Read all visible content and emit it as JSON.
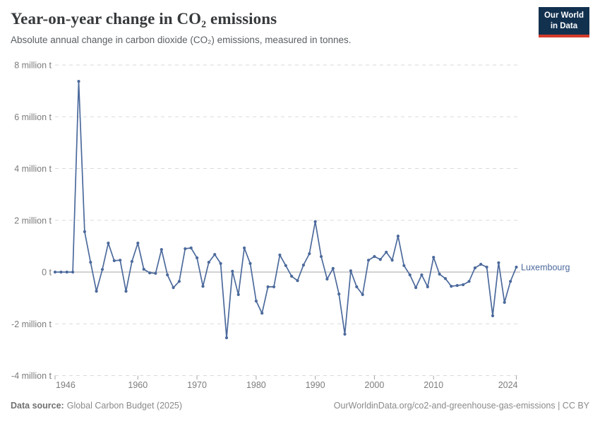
{
  "header": {
    "title": "Year-on-year change in CO₂ emissions",
    "subtitle": "Absolute annual change in carbon dioxide (CO₂) emissions, measured in tonnes.",
    "logo": {
      "line1": "Our World",
      "line2": "in Data",
      "bg_color": "#12314f",
      "accent_color": "#d43b2a"
    }
  },
  "chart_data": {
    "type": "line",
    "title": "Year-on-year change in CO₂ emissions",
    "subtitle": "Absolute annual change in carbon dioxide (CO₂) emissions, measured in tonnes.",
    "entity": "Luxembourg",
    "value_unit": "million tonnes",
    "line_color": "#4c6a9c",
    "grid": true,
    "legend_position": "end-of-line-label",
    "xlim": [
      1946,
      2024
    ],
    "ylim": [
      -4,
      8
    ],
    "x_ticks": [
      1946,
      1960,
      1970,
      1980,
      1990,
      2000,
      2010,
      2024
    ],
    "y_ticks": [
      {
        "value": 8,
        "label": "8 million t"
      },
      {
        "value": 6,
        "label": "6 million t"
      },
      {
        "value": 4,
        "label": "4 million t"
      },
      {
        "value": 2,
        "label": "2 million t"
      },
      {
        "value": 0,
        "label": "0 t"
      },
      {
        "value": -2,
        "label": "-2 million t"
      },
      {
        "value": -4,
        "label": "-4 million t"
      }
    ],
    "x": [
      1946,
      1947,
      1948,
      1949,
      1950,
      1951,
      1952,
      1953,
      1954,
      1955,
      1956,
      1957,
      1958,
      1959,
      1960,
      1961,
      1962,
      1963,
      1964,
      1965,
      1966,
      1967,
      1968,
      1969,
      1970,
      1971,
      1972,
      1973,
      1974,
      1975,
      1976,
      1977,
      1978,
      1979,
      1980,
      1981,
      1982,
      1983,
      1984,
      1985,
      1986,
      1987,
      1988,
      1989,
      1990,
      1991,
      1992,
      1993,
      1994,
      1995,
      1996,
      1997,
      1998,
      1999,
      2000,
      2001,
      2002,
      2003,
      2004,
      2005,
      2006,
      2007,
      2008,
      2009,
      2010,
      2011,
      2012,
      2013,
      2014,
      2015,
      2016,
      2017,
      2018,
      2019,
      2020,
      2021,
      2022,
      2023,
      2024
    ],
    "values": [
      0,
      0,
      0,
      0,
      7.37,
      1.56,
      0.38,
      -0.74,
      0.1,
      1.12,
      0.44,
      0.46,
      -0.74,
      0.41,
      1.12,
      0.11,
      -0.03,
      -0.05,
      0.87,
      -0.11,
      -0.6,
      -0.36,
      0.9,
      0.93,
      0.55,
      -0.55,
      0.38,
      0.68,
      0.33,
      -2.54,
      0.03,
      -0.87,
      0.93,
      0.33,
      -1.12,
      -1.59,
      -0.57,
      -0.57,
      0.66,
      0.25,
      -0.16,
      -0.33,
      0.27,
      0.71,
      1.95,
      0.6,
      -0.27,
      0.14,
      -0.85,
      -2.4,
      0.05,
      -0.57,
      -0.87,
      0.46,
      0.6,
      0.49,
      0.77,
      0.46,
      1.39,
      0.25,
      -0.11,
      -0.6,
      -0.11,
      -0.57,
      0.57,
      -0.08,
      -0.25,
      -0.55,
      -0.52,
      -0.49,
      -0.36,
      0.16,
      0.3,
      0.19,
      -1.69,
      0.36,
      -1.17,
      -0.36,
      0.19
    ]
  },
  "footer": {
    "source_label": "Data source:",
    "source_value": "Global Carbon Budget (2025)",
    "note_right": "OurWorldinData.org/co2-and-greenhouse-gas-emissions | CC BY"
  }
}
